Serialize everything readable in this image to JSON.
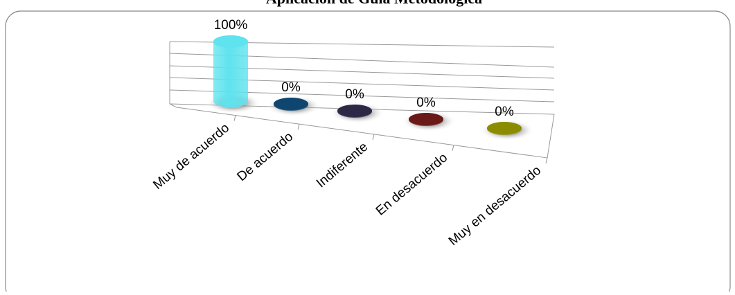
{
  "chart_data": {
    "type": "bar",
    "title": "Aplicación de Guía Metodológica",
    "categories": [
      "Muy de acuerdo",
      "De acuerdo",
      "Indiferente",
      "En desacuerdo",
      "Muy en desacuerdo"
    ],
    "values": [
      100,
      0,
      0,
      0,
      0
    ],
    "value_labels": [
      "100%",
      "0%",
      "0%",
      "0%",
      "0%"
    ],
    "colors": [
      "#5fe3ee",
      "#0e4670",
      "#2c2846",
      "#6a1818",
      "#8c8c00"
    ],
    "ylim": [
      0,
      100
    ]
  }
}
